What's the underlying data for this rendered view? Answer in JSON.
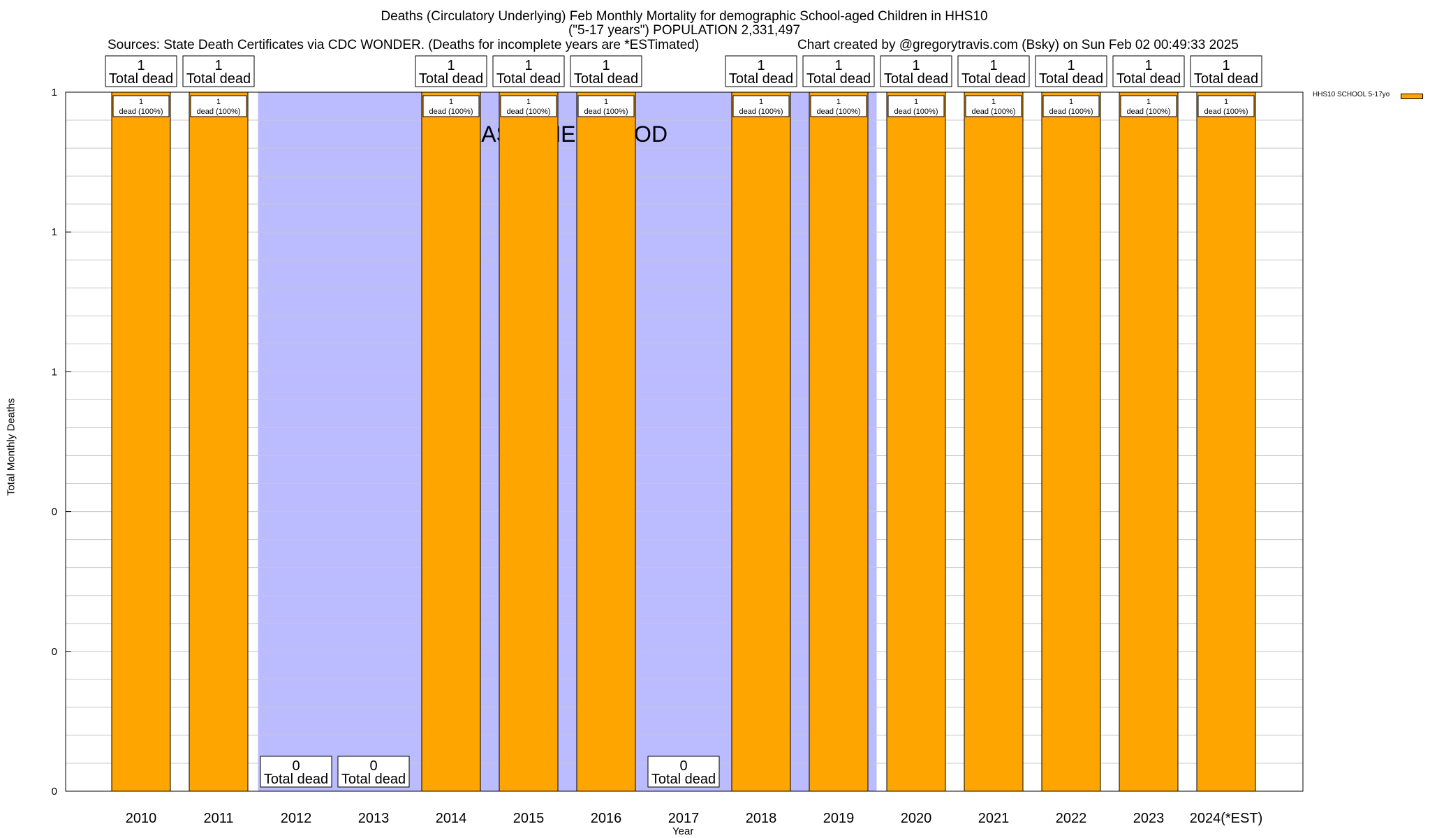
{
  "title": {
    "line1": "Deaths (Circulatory Underlying) Feb Monthly Mortality for demographic School-aged Children in HHS10",
    "line2": "(\"5-17 years\") POPULATION 2,331,497",
    "sources": "Sources: State Death Certificates via CDC WONDER. (Deaths for incomplete years are *ESTimated)",
    "credit": "Chart created by @gregorytravis.com (Bsky) on Sun Feb 02 00:49:33 2025"
  },
  "legend": {
    "label": "HHS10 SCHOOL 5-17yo",
    "color": "#ffa500"
  },
  "baseline_label": "BASELINE PERIOD",
  "chart_data": {
    "type": "bar",
    "categories": [
      "2010",
      "2011",
      "2012",
      "2013",
      "2014",
      "2015",
      "2016",
      "2017",
      "2018",
      "2019",
      "2020",
      "2021",
      "2022",
      "2023",
      "2024(*EST)"
    ],
    "series": [
      {
        "name": "HHS10 SCHOOL 5-17yo",
        "values": [
          1,
          1,
          0,
          0,
          1,
          1,
          1,
          0,
          1,
          1,
          1,
          1,
          1,
          1,
          1
        ]
      }
    ],
    "total_labels": [
      "1",
      "1",
      "0",
      "0",
      "1",
      "1",
      "1",
      "0",
      "1",
      "1",
      "1",
      "1",
      "1",
      "1",
      "1"
    ],
    "total_suffix": "Total dead",
    "inner_labels": [
      "1\ndead (100%)",
      "1\ndead (100%)",
      "",
      "",
      "1\ndead (100%)",
      "1\ndead (100%)",
      "1\ndead (100%)",
      "",
      "1\ndead (100%)",
      "1\ndead (100%)",
      "1\ndead (100%)",
      "1\ndead (100%)",
      "1\ndead (100%)",
      "1\ndead (100%)",
      "1\ndead (100%)"
    ],
    "baseline_years": [
      "2012",
      "2013",
      "2014",
      "2015",
      "2016",
      "2017",
      "2018",
      "2019"
    ],
    "baseline_color": "#bbbbff",
    "bar_color": "#ffa500",
    "xlabel": "Year",
    "ylabel": "Total Monthly Deaths",
    "ylim": [
      0,
      1
    ],
    "y_tick_labels": [
      "0",
      "0",
      "0",
      "1",
      "1",
      "1"
    ],
    "grid": true
  }
}
